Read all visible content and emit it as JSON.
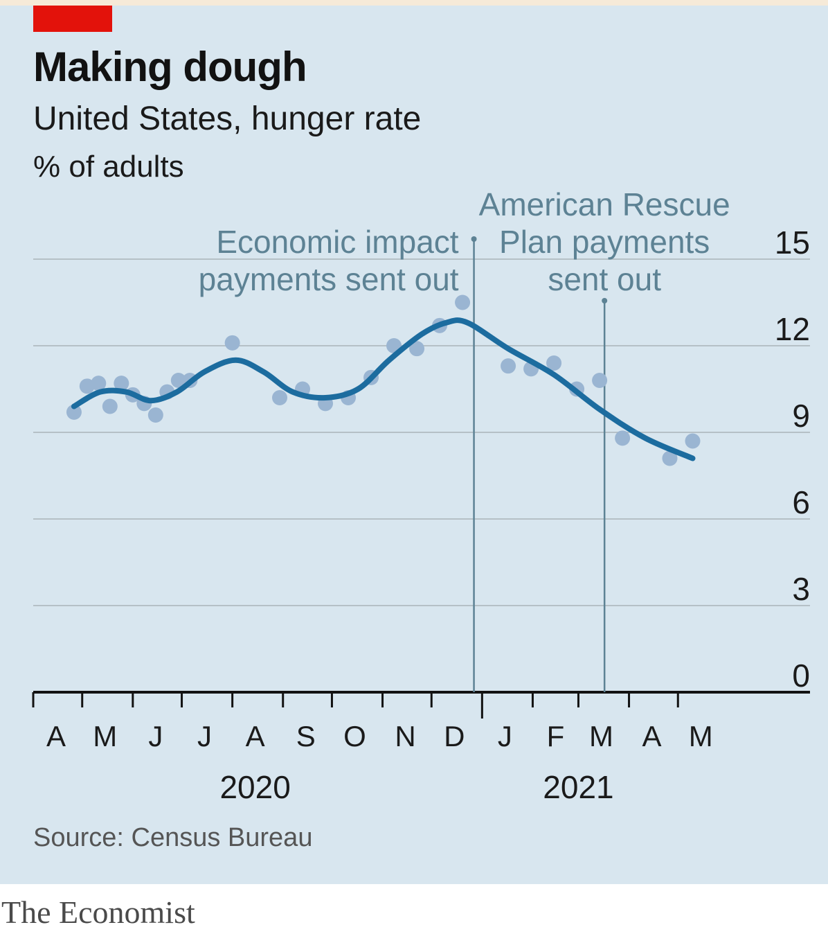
{
  "brand": "The Economist",
  "chart_data": {
    "type": "line",
    "title": "Making dough",
    "subtitle": "United States, hunger rate",
    "unit_label": "% of adults",
    "source": "Source: Census Bureau",
    "ylim": [
      0,
      15
    ],
    "yticks": [
      0,
      3,
      6,
      9,
      12,
      15
    ],
    "y_axis_side": "right",
    "grid": true,
    "x_start": "2020-04-01",
    "x_end": "2021-05-31",
    "month_labels": [
      {
        "label": "A",
        "date": "2020-04-15"
      },
      {
        "label": "M",
        "date": "2020-05-15"
      },
      {
        "label": "J",
        "date": "2020-06-15"
      },
      {
        "label": "J",
        "date": "2020-07-15"
      },
      {
        "label": "A",
        "date": "2020-08-15"
      },
      {
        "label": "S",
        "date": "2020-09-15"
      },
      {
        "label": "O",
        "date": "2020-10-15"
      },
      {
        "label": "N",
        "date": "2020-11-15"
      },
      {
        "label": "D",
        "date": "2020-12-15"
      },
      {
        "label": "J",
        "date": "2021-01-15"
      },
      {
        "label": "F",
        "date": "2021-02-15"
      },
      {
        "label": "M",
        "date": "2021-03-15"
      },
      {
        "label": "A",
        "date": "2021-04-15"
      },
      {
        "label": "M",
        "date": "2021-05-15"
      }
    ],
    "year_labels": [
      {
        "label": "2020",
        "date": "2020-08-15"
      },
      {
        "label": "2021",
        "date": "2021-03-01"
      }
    ],
    "series": [
      {
        "type": "scatter",
        "points": [
          {
            "x": "2020-04-26",
            "y": 9.7
          },
          {
            "x": "2020-05-04",
            "y": 10.6
          },
          {
            "x": "2020-05-11",
            "y": 10.7
          },
          {
            "x": "2020-05-18",
            "y": 9.9
          },
          {
            "x": "2020-05-25",
            "y": 10.7
          },
          {
            "x": "2020-06-01",
            "y": 10.3
          },
          {
            "x": "2020-06-08",
            "y": 10.0
          },
          {
            "x": "2020-06-15",
            "y": 9.6
          },
          {
            "x": "2020-06-22",
            "y": 10.4
          },
          {
            "x": "2020-06-29",
            "y": 10.8
          },
          {
            "x": "2020-07-06",
            "y": 10.8
          },
          {
            "x": "2020-08-01",
            "y": 12.1
          },
          {
            "x": "2020-08-30",
            "y": 10.2
          },
          {
            "x": "2020-09-13",
            "y": 10.5
          },
          {
            "x": "2020-09-27",
            "y": 10.0
          },
          {
            "x": "2020-10-11",
            "y": 10.2
          },
          {
            "x": "2020-10-25",
            "y": 10.9
          },
          {
            "x": "2020-11-08",
            "y": 12.0
          },
          {
            "x": "2020-11-22",
            "y": 11.9
          },
          {
            "x": "2020-12-06",
            "y": 12.7
          },
          {
            "x": "2020-12-20",
            "y": 13.5
          },
          {
            "x": "2021-01-17",
            "y": 11.3
          },
          {
            "x": "2021-01-31",
            "y": 11.2
          },
          {
            "x": "2021-02-14",
            "y": 11.4
          },
          {
            "x": "2021-02-28",
            "y": 10.5
          },
          {
            "x": "2021-03-14",
            "y": 10.8
          },
          {
            "x": "2021-03-28",
            "y": 8.8
          },
          {
            "x": "2021-04-26",
            "y": 8.1
          },
          {
            "x": "2021-05-10",
            "y": 8.7
          }
        ]
      },
      {
        "type": "line",
        "points": [
          {
            "x": "2020-04-26",
            "y": 9.9
          },
          {
            "x": "2020-05-12",
            "y": 10.4
          },
          {
            "x": "2020-05-28",
            "y": 10.4
          },
          {
            "x": "2020-06-12",
            "y": 10.1
          },
          {
            "x": "2020-06-28",
            "y": 10.4
          },
          {
            "x": "2020-07-15",
            "y": 11.1
          },
          {
            "x": "2020-08-03",
            "y": 11.5
          },
          {
            "x": "2020-08-20",
            "y": 11.1
          },
          {
            "x": "2020-09-07",
            "y": 10.4
          },
          {
            "x": "2020-09-27",
            "y": 10.2
          },
          {
            "x": "2020-10-17",
            "y": 10.5
          },
          {
            "x": "2020-11-05",
            "y": 11.5
          },
          {
            "x": "2020-11-25",
            "y": 12.4
          },
          {
            "x": "2020-12-10",
            "y": 12.8
          },
          {
            "x": "2020-12-23",
            "y": 12.8
          },
          {
            "x": "2021-01-17",
            "y": 11.9
          },
          {
            "x": "2021-02-14",
            "y": 11.0
          },
          {
            "x": "2021-03-14",
            "y": 9.8
          },
          {
            "x": "2021-04-11",
            "y": 8.8
          },
          {
            "x": "2021-05-10",
            "y": 8.1
          }
        ]
      }
    ],
    "annotations": [
      {
        "text_lines": [
          "Economic impact",
          "payments sent out"
        ],
        "date": "2020-12-27"
      },
      {
        "text_lines": [
          "American Rescue",
          "Plan payments",
          "sent out"
        ],
        "date": "2021-03-17"
      }
    ],
    "colors": {
      "line": "#1c6c9f",
      "dots": "#9ab5d2",
      "grid": "#b5c0c6",
      "axis": "#121212",
      "annotation_text": "#5d8294",
      "annotation_line": "#5d8294"
    }
  }
}
